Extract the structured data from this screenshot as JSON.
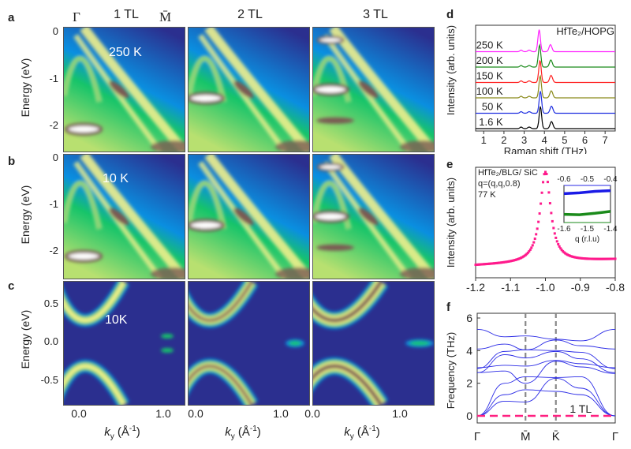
{
  "panel_labels": {
    "a": "a",
    "b": "b",
    "c": "c",
    "d": "d",
    "e": "e",
    "f": "f"
  },
  "arpes": {
    "column_titles": [
      "1 TL",
      "2 TL",
      "3 TL"
    ],
    "gamma_symbol": "Γ",
    "mbar_symbol": "M̄",
    "ylabel": "Energy (eV)",
    "row_a": {
      "temperature": "250 K",
      "yticks": [
        "0",
        "-1",
        "-2"
      ]
    },
    "row_b": {
      "temperature": "10 K",
      "yticks": [
        "0",
        "-1",
        "-2"
      ]
    },
    "row_c": {
      "temperature": "10K",
      "yticks": [
        "0.5",
        "0.0",
        "-0.5"
      ]
    },
    "xticks": [
      "0.0",
      "1.0"
    ],
    "xlabel_main": "k",
    "xlabel_sub": "y",
    "xlabel_unit": " (Å",
    "xlabel_sup": "-1",
    "xlabel_close": ")",
    "colormap": [
      "#2b2f8f",
      "#0a8fe0",
      "#16c46a",
      "#f0f08c",
      "#7a5a52",
      "#ffffff"
    ]
  },
  "chart_data": [
    {
      "id": "d",
      "type": "line",
      "title": "",
      "annotation": "HfTe₂/HOPG",
      "xlabel": "Raman shift (THz)",
      "ylabel": "Intensity (arb. units)",
      "xlim": [
        0.6,
        7.5
      ],
      "xticks": [
        "1",
        "2",
        "3",
        "4",
        "5",
        "6",
        "7"
      ],
      "peaks_THz": [
        2.85,
        3.25,
        3.75,
        4.35
      ],
      "series": [
        {
          "name": "1.6 K",
          "color": "#000000",
          "peak_main": 3.8,
          "peak_second": 4.35
        },
        {
          "name": "50 K",
          "color": "#1f2fe0",
          "peak_main": 3.8,
          "peak_second": 4.35
        },
        {
          "name": "100 K",
          "color": "#8a8a1a",
          "peak_main": 3.79,
          "peak_second": 4.34
        },
        {
          "name": "150 K",
          "color": "#ff2020",
          "peak_main": 3.78,
          "peak_second": 4.33
        },
        {
          "name": "200 K",
          "color": "#1a8a1a",
          "peak_main": 3.76,
          "peak_second": 4.32
        },
        {
          "name": "250 K",
          "color": "#ff20ff",
          "peak_main": 3.74,
          "peak_second": 4.3
        }
      ]
    },
    {
      "id": "e",
      "type": "scatter",
      "annotations": [
        "HfTe₂/BLG/ SiC",
        "q=(q,q,0.8)",
        "77 K"
      ],
      "xlabel": "q (r.l.u)",
      "ylabel": "Intensity (arb. units)",
      "xlim": [
        -1.2,
        -0.8
      ],
      "xticks": [
        "-1.2",
        "-1.1",
        "-1.0",
        "-0.9",
        "-0.8"
      ],
      "color": "#ff1a8c",
      "peak_center": -1.0,
      "points": [
        [
          -1.2,
          0.05
        ],
        [
          -1.15,
          0.06
        ],
        [
          -1.1,
          0.07
        ],
        [
          -1.06,
          0.1
        ],
        [
          -1.04,
          0.16
        ],
        [
          -1.03,
          0.22
        ],
        [
          -1.025,
          0.3
        ],
        [
          -1.02,
          0.4
        ],
        [
          -1.015,
          0.52
        ],
        [
          -1.01,
          0.7
        ],
        [
          -1.005,
          0.9
        ],
        [
          -1.0,
          1.0
        ],
        [
          -0.995,
          0.95
        ],
        [
          -0.99,
          0.85
        ],
        [
          -0.985,
          0.68
        ],
        [
          -0.98,
          0.52
        ],
        [
          -0.975,
          0.4
        ],
        [
          -0.97,
          0.32
        ],
        [
          -0.96,
          0.24
        ],
        [
          -0.95,
          0.19
        ],
        [
          -0.93,
          0.15
        ],
        [
          -0.9,
          0.13
        ],
        [
          -0.85,
          0.12
        ],
        [
          -0.8,
          0.12
        ]
      ],
      "inset": {
        "xticks_top": [
          "-0.6",
          "-0.5",
          "-0.4"
        ],
        "xticks_bottom": [
          "-1.6",
          "-1.5",
          "-1.4"
        ],
        "xlabel": "q (r.l.u)",
        "series": [
          {
            "name": "blue",
            "color": "#1a1ae6",
            "values": [
              0.78,
              0.8,
              0.84,
              0.86
            ]
          },
          {
            "name": "green",
            "color": "#1a8a1a",
            "values": [
              0.22,
              0.21,
              0.25,
              0.3
            ]
          }
        ]
      }
    },
    {
      "id": "f",
      "type": "line",
      "title": "",
      "annotation": "1 TL",
      "xlabel": "",
      "ylabel": "Frequency (THz)",
      "ylim": [
        -0.5,
        6
      ],
      "yticks": [
        "0",
        "2",
        "4",
        "6"
      ],
      "x_points": [
        "Γ",
        "M̄",
        "K̄",
        "Γ"
      ],
      "color": "#2a2ae6",
      "zero_line_color": "#ff2080",
      "branches": [
        [
          5.3,
          4.85,
          4.9,
          4.7,
          4.6,
          5.3
        ],
        [
          4.1,
          4.4,
          4.05,
          4.65,
          4.3,
          4.1
        ],
        [
          2.9,
          3.95,
          4.05,
          4.0,
          3.9,
          2.9
        ],
        [
          2.65,
          3.75,
          3.55,
          3.95,
          3.5,
          2.65
        ],
        [
          2.95,
          3.1,
          3.05,
          3.4,
          3.2,
          2.95
        ],
        [
          2.65,
          2.75,
          2.0,
          3.35,
          3.0,
          2.6
        ],
        [
          0,
          2.0,
          2.4,
          2.35,
          2.4,
          0
        ],
        [
          0,
          1.3,
          1.6,
          1.5,
          1.3,
          0
        ],
        [
          0,
          0.9,
          0.85,
          2.3,
          1.7,
          0
        ]
      ],
      "branch_x": [
        0,
        0.2,
        0.35,
        0.57,
        0.75,
        1.0
      ],
      "dashed_verticals_at": [
        0.35,
        0.57
      ]
    }
  ]
}
